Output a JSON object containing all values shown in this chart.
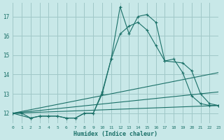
{
  "xlabel": "Humidex (Indice chaleur)",
  "bg_color": "#c8e8e8",
  "line_color": "#1a7068",
  "grid_color": "#a0c8c8",
  "xlim": [
    0,
    23
  ],
  "ylim": [
    11.5,
    17.7
  ],
  "yticks": [
    12,
    13,
    14,
    15,
    16,
    17
  ],
  "xticks": [
    0,
    1,
    2,
    3,
    4,
    5,
    6,
    7,
    8,
    9,
    10,
    11,
    12,
    13,
    14,
    15,
    16,
    17,
    18,
    19,
    20,
    21,
    22,
    23
  ],
  "curves": [
    {
      "x": [
        0,
        1,
        2,
        3,
        4,
        5,
        6,
        7,
        8,
        9,
        10,
        11,
        12,
        13,
        14,
        15,
        16,
        17,
        18,
        19,
        20,
        21,
        22,
        23
      ],
      "y": [
        12.0,
        12.0,
        11.75,
        11.85,
        11.85,
        11.85,
        11.75,
        11.75,
        12.0,
        12.0,
        13.1,
        14.8,
        17.5,
        16.1,
        17.0,
        17.1,
        16.7,
        14.7,
        14.8,
        14.1,
        12.9,
        12.5,
        12.4,
        12.4
      ],
      "markers": true
    },
    {
      "x": [
        0,
        2,
        3,
        4,
        5,
        6,
        7,
        8,
        9,
        10,
        11,
        12,
        13,
        14,
        15,
        16,
        17,
        19,
        20,
        21,
        22,
        23
      ],
      "y": [
        12.0,
        11.75,
        11.85,
        11.85,
        11.85,
        11.75,
        11.75,
        12.0,
        12.0,
        13.0,
        14.8,
        16.1,
        16.5,
        16.7,
        16.3,
        15.5,
        14.7,
        14.6,
        14.2,
        13.0,
        12.5,
        12.4
      ],
      "markers": true
    },
    {
      "x": [
        0,
        23
      ],
      "y": [
        12.0,
        14.1
      ],
      "markers": false
    },
    {
      "x": [
        0,
        23
      ],
      "y": [
        12.0,
        13.1
      ],
      "markers": false
    },
    {
      "x": [
        0,
        23
      ],
      "y": [
        12.0,
        12.4
      ],
      "markers": false
    }
  ]
}
